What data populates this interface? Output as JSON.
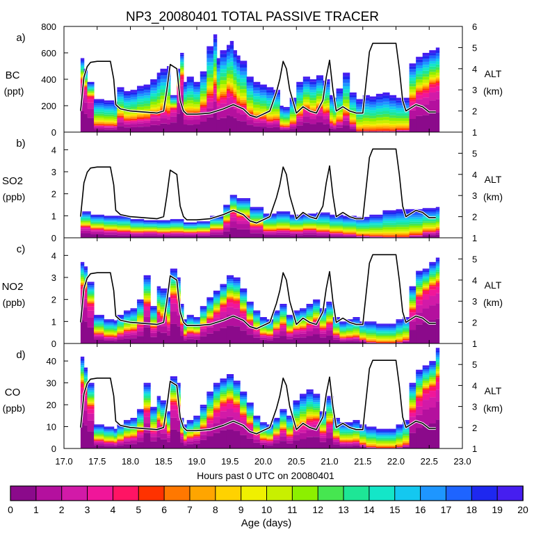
{
  "chart_data": {
    "type": "area",
    "title": "NP3_20080401 TOTAL PASSIVE TRACER",
    "xlabel": "Hours past 0 UTC on 20080401",
    "xlim": [
      17.0,
      23.0
    ],
    "x_ticks": [
      "17.0",
      "17.5",
      "18.0",
      "18.5",
      "19.0",
      "19.5",
      "20.0",
      "20.5",
      "21.0",
      "21.5",
      "22.0",
      "22.5",
      "23.0"
    ],
    "colorbar": {
      "label": "Age (days)",
      "ticks": [
        "0",
        "1",
        "2",
        "3",
        "4",
        "5",
        "6",
        "7",
        "8",
        "9",
        "10",
        "11",
        "12",
        "13",
        "14",
        "15",
        "16",
        "17",
        "18",
        "19",
        "20"
      ],
      "colors": [
        "#8b0a8b",
        "#b4109e",
        "#d21aa8",
        "#f0169a",
        "#ff1464",
        "#ff3200",
        "#ff7800",
        "#ffa500",
        "#ffd200",
        "#f0f000",
        "#c8f000",
        "#8cf000",
        "#46e650",
        "#1ee696",
        "#14e6c8",
        "#14c8f0",
        "#1e96ff",
        "#1e64ff",
        "#1e28f0",
        "#461ef0"
      ]
    },
    "alt_axis": {
      "label_top": "ALT",
      "label_bottom": "(km)",
      "ticks": [
        "1",
        "2",
        "3",
        "4",
        "5",
        "6"
      ],
      "range": [
        1,
        6
      ]
    },
    "altitude": {
      "x": [
        17.25,
        17.3,
        17.35,
        17.4,
        17.5,
        17.6,
        17.7,
        17.75,
        17.78,
        17.85,
        18.0,
        18.2,
        18.4,
        18.5,
        18.55,
        18.6,
        18.7,
        18.75,
        18.8,
        18.85,
        19.0,
        19.2,
        19.4,
        19.55,
        19.7,
        19.8,
        19.9,
        20.0,
        20.1,
        20.2,
        20.25,
        20.3,
        20.35,
        20.4,
        20.5,
        20.6,
        20.7,
        20.8,
        20.9,
        20.95,
        21.0,
        21.05,
        21.1,
        21.2,
        21.3,
        21.4,
        21.5,
        21.6,
        21.65,
        21.7,
        22.0,
        22.05,
        22.1,
        22.15,
        22.2,
        22.3,
        22.4,
        22.5,
        22.6
      ],
      "y": [
        2.0,
        3.6,
        4.1,
        4.3,
        4.35,
        4.35,
        4.35,
        3.5,
        2.3,
        2.1,
        2.0,
        1.95,
        1.9,
        2.0,
        3.0,
        4.2,
        4.0,
        2.5,
        2.0,
        1.85,
        1.85,
        1.9,
        2.1,
        2.3,
        2.1,
        1.8,
        1.7,
        1.85,
        2.0,
        2.9,
        3.5,
        4.35,
        4.0,
        3.0,
        1.9,
        2.2,
        2.0,
        1.9,
        2.5,
        3.6,
        4.4,
        3.0,
        2.0,
        2.2,
        2.0,
        1.9,
        1.9,
        4.8,
        5.2,
        5.2,
        5.2,
        4.0,
        2.5,
        2.0,
        2.1,
        2.3,
        2.2,
        1.95,
        1.95
      ]
    },
    "panels": [
      {
        "id": "a",
        "label": "a)",
        "var_line1": "BC",
        "var_line2": "(ppt)",
        "ylim": [
          0,
          800
        ],
        "ticks": [
          "0",
          "200",
          "400",
          "600",
          "800"
        ],
        "x": [
          17.25,
          17.3,
          17.35,
          17.45,
          17.6,
          17.75,
          17.8,
          17.9,
          18.0,
          18.1,
          18.2,
          18.3,
          18.4,
          18.45,
          18.55,
          18.6,
          18.7,
          18.75,
          18.8,
          18.85,
          18.95,
          19.05,
          19.15,
          19.25,
          19.3,
          19.35,
          19.45,
          19.5,
          19.55,
          19.6,
          19.65,
          19.75,
          19.85,
          19.95,
          20.05,
          20.15,
          20.25,
          20.3,
          20.4,
          20.5,
          20.6,
          20.7,
          20.8,
          20.9,
          20.95,
          21.0,
          21.05,
          21.1,
          21.2,
          21.3,
          21.4,
          21.5,
          21.6,
          21.7,
          21.8,
          21.9,
          22.0,
          22.1,
          22.2,
          22.3,
          22.4,
          22.5,
          22.6
        ],
        "total": [
          560,
          480,
          380,
          250,
          240,
          230,
          340,
          310,
          320,
          350,
          360,
          400,
          450,
          480,
          500,
          280,
          480,
          600,
          380,
          420,
          380,
          460,
          650,
          740,
          560,
          620,
          660,
          690,
          620,
          580,
          540,
          420,
          380,
          360,
          340,
          320,
          200,
          190,
          260,
          380,
          420,
          400,
          430,
          390,
          400,
          280,
          260,
          330,
          450,
          300,
          250,
          280,
          270,
          290,
          300,
          280,
          260,
          260,
          520,
          570,
          600,
          620,
          640
        ],
        "fresh": [
          0.8,
          0.8,
          0.8,
          0.3,
          0.3,
          0.3,
          0.45,
          0.4,
          0.4,
          0.4,
          0.4,
          0.45,
          0.4,
          0.45,
          0.4,
          0.75,
          0.8,
          0.8,
          0.5,
          0.45,
          0.5,
          0.55,
          0.55,
          0.6,
          0.55,
          0.55,
          0.6,
          0.55,
          0.55,
          0.5,
          0.5,
          0.45,
          0.4,
          0.4,
          0.35,
          0.4,
          0.3,
          0.3,
          0.35,
          0.45,
          0.55,
          0.5,
          0.55,
          0.5,
          0.5,
          0.35,
          0.3,
          0.35,
          0.4,
          0.3,
          0.05,
          0.05,
          0.05,
          0.05,
          0.05,
          0.05,
          0.1,
          0.1,
          0.6,
          0.65,
          0.65,
          0.7,
          0.7
        ]
      },
      {
        "id": "b",
        "label": "b)",
        "var_line1": "SO2",
        "var_line2": "(ppb)",
        "ylim": [
          0,
          4.8
        ],
        "ticks": [
          "0",
          "1",
          "2",
          "3",
          "4"
        ],
        "x": [
          17.25,
          17.4,
          17.6,
          17.8,
          18.0,
          18.2,
          18.4,
          18.6,
          18.8,
          19.0,
          19.2,
          19.4,
          19.5,
          19.6,
          19.8,
          20.0,
          20.2,
          20.4,
          20.6,
          20.8,
          21.0,
          21.2,
          21.4,
          21.6,
          21.8,
          22.0,
          22.2,
          22.4,
          22.6
        ],
        "total": [
          1.2,
          1.05,
          1.0,
          1.0,
          0.85,
          0.8,
          0.8,
          0.85,
          0.7,
          0.75,
          1.0,
          1.5,
          1.95,
          1.8,
          1.4,
          1.1,
          1.2,
          1.05,
          1.1,
          1.15,
          1.05,
          1.0,
          0.95,
          1.05,
          1.25,
          1.3,
          1.3,
          1.35,
          1.4
        ],
        "fresh": [
          0.55,
          0.5,
          0.45,
          0.4,
          0.4,
          0.45,
          0.4,
          0.4,
          0.45,
          0.45,
          0.5,
          0.6,
          0.7,
          0.65,
          0.5,
          0.4,
          0.4,
          0.4,
          0.45,
          0.35,
          0.3,
          0.25,
          0.15,
          0.1,
          0.05,
          0.05,
          0.15,
          0.3,
          0.35
        ]
      },
      {
        "id": "c",
        "label": "c)",
        "var_line1": "NO2",
        "var_line2": "(ppb)",
        "ylim": [
          0,
          4.8
        ],
        "ticks": [
          "0",
          "1",
          "2",
          "3",
          "4"
        ],
        "x": [
          17.25,
          17.3,
          17.35,
          17.45,
          17.6,
          17.75,
          17.8,
          17.9,
          18.0,
          18.1,
          18.2,
          18.3,
          18.4,
          18.45,
          18.55,
          18.6,
          18.7,
          18.75,
          18.8,
          18.85,
          18.95,
          19.05,
          19.15,
          19.25,
          19.35,
          19.45,
          19.55,
          19.65,
          19.75,
          19.85,
          19.95,
          20.05,
          20.15,
          20.25,
          20.35,
          20.45,
          20.55,
          20.65,
          20.75,
          20.85,
          20.95,
          21.05,
          21.15,
          21.25,
          21.35,
          21.45,
          21.55,
          21.7,
          21.9,
          22.0,
          22.1,
          22.2,
          22.3,
          22.4,
          22.5,
          22.6
        ],
        "total": [
          3.7,
          3.5,
          2.8,
          1.3,
          1.1,
          1.05,
          1.3,
          1.5,
          1.6,
          2.0,
          3.1,
          1.7,
          2.6,
          2.5,
          2.1,
          3.4,
          3.0,
          1.8,
          1.1,
          1.3,
          1.2,
          1.7,
          2.1,
          2.4,
          2.7,
          3.1,
          3.0,
          2.5,
          1.9,
          1.5,
          1.2,
          1.1,
          1.5,
          1.8,
          1.3,
          1.5,
          1.6,
          1.8,
          2.0,
          1.6,
          1.9,
          1.2,
          1.0,
          1.1,
          1.2,
          1.0,
          1.0,
          0.9,
          0.9,
          1.1,
          1.2,
          2.6,
          3.3,
          3.4,
          3.7,
          3.9
        ],
        "fresh": [
          0.8,
          0.8,
          0.75,
          0.45,
          0.4,
          0.4,
          0.45,
          0.5,
          0.5,
          0.55,
          0.7,
          0.55,
          0.65,
          0.6,
          0.55,
          0.75,
          0.75,
          0.6,
          0.45,
          0.5,
          0.5,
          0.6,
          0.65,
          0.7,
          0.75,
          0.75,
          0.75,
          0.7,
          0.65,
          0.55,
          0.45,
          0.45,
          0.55,
          0.6,
          0.5,
          0.55,
          0.55,
          0.6,
          0.65,
          0.55,
          0.6,
          0.45,
          0.35,
          0.35,
          0.35,
          0.25,
          0.1,
          0.05,
          0.05,
          0.1,
          0.2,
          0.7,
          0.75,
          0.8,
          0.8,
          0.8
        ]
      },
      {
        "id": "d",
        "label": "d)",
        "var_line1": "CO",
        "var_line2": "(ppb)",
        "ylim": [
          0,
          48
        ],
        "ticks": [
          "0",
          "10",
          "20",
          "30",
          "40"
        ],
        "x": [
          17.25,
          17.3,
          17.35,
          17.45,
          17.6,
          17.75,
          17.8,
          17.9,
          18.0,
          18.1,
          18.2,
          18.3,
          18.4,
          18.45,
          18.55,
          18.6,
          18.7,
          18.75,
          18.8,
          18.85,
          18.95,
          19.05,
          19.15,
          19.25,
          19.35,
          19.45,
          19.55,
          19.65,
          19.75,
          19.85,
          19.95,
          20.05,
          20.15,
          20.25,
          20.35,
          20.45,
          20.55,
          20.65,
          20.75,
          20.85,
          20.95,
          21.05,
          21.15,
          21.25,
          21.35,
          21.45,
          21.55,
          21.7,
          21.9,
          22.0,
          22.1,
          22.2,
          22.3,
          22.4,
          22.5,
          22.6
        ],
        "total": [
          42,
          37,
          30,
          11,
          10,
          9,
          11,
          13,
          14,
          18,
          30,
          19,
          24,
          22,
          17,
          33,
          30,
          14,
          11,
          13,
          15,
          20,
          26,
          30,
          32,
          34,
          31,
          26,
          21,
          15,
          12,
          11,
          14,
          18,
          15,
          22,
          25,
          27,
          25,
          17,
          24,
          14,
          12,
          12,
          13,
          11,
          10,
          9,
          9,
          11,
          13,
          30,
          36,
          38,
          40,
          46
        ],
        "fresh": [
          0.8,
          0.8,
          0.75,
          0.45,
          0.4,
          0.4,
          0.45,
          0.5,
          0.5,
          0.55,
          0.7,
          0.55,
          0.65,
          0.6,
          0.55,
          0.75,
          0.75,
          0.6,
          0.45,
          0.5,
          0.5,
          0.6,
          0.65,
          0.7,
          0.75,
          0.75,
          0.75,
          0.7,
          0.65,
          0.55,
          0.45,
          0.45,
          0.55,
          0.6,
          0.5,
          0.55,
          0.55,
          0.6,
          0.65,
          0.55,
          0.6,
          0.45,
          0.35,
          0.35,
          0.35,
          0.25,
          0.1,
          0.05,
          0.05,
          0.1,
          0.2,
          0.7,
          0.75,
          0.8,
          0.8,
          0.8
        ]
      }
    ]
  }
}
